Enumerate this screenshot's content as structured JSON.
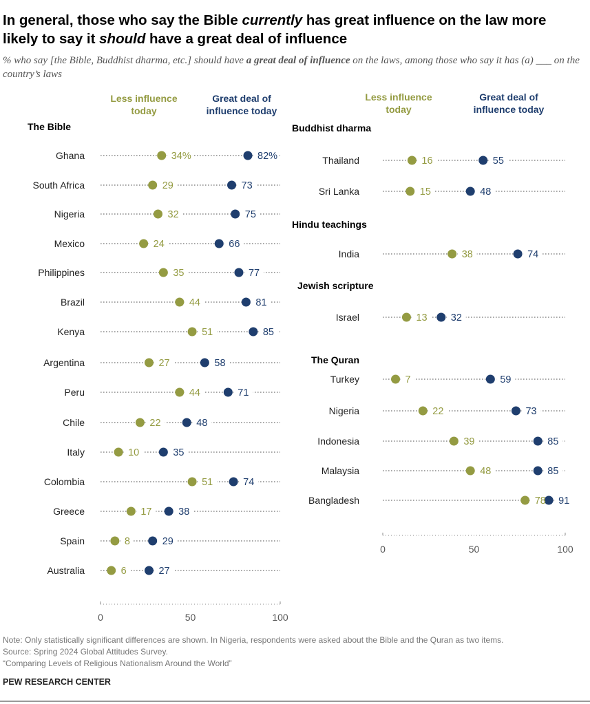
{
  "title_parts": {
    "t1": "In general, those who say the Bible ",
    "t2": "currently",
    "t3": " has great influence on the law more likely to say it ",
    "t4": "should",
    "t5": " have a great deal of influence"
  },
  "subtitle_parts": {
    "s1": "% who say [the Bible, Buddhist dharma, etc.] should have ",
    "s2": "a great deal of influence",
    "s3": " on the laws, among those who say it has (a) ___ on the country’s laws"
  },
  "legend": {
    "less": [
      "Less influence",
      "today"
    ],
    "great": [
      "Great deal of",
      "influence today"
    ]
  },
  "colors": {
    "less": "#949b42",
    "great": "#1f3e6e",
    "dots": "#8a8a8a",
    "axis": "#888888"
  },
  "chart_data": [
    {
      "type": "dot",
      "panel": "left",
      "xlim": [
        0,
        100
      ],
      "ticks": [
        0,
        50,
        100
      ],
      "series": [
        "Less influence today",
        "Great deal of influence today"
      ],
      "groups": [
        {
          "label": "The Bible",
          "rows": [
            {
              "country": "Ghana",
              "less": 34,
              "great": 82,
              "pct": true
            },
            {
              "country": "South Africa",
              "less": 29,
              "great": 73
            },
            {
              "country": "Nigeria",
              "less": 32,
              "great": 75
            },
            {
              "country": "Mexico",
              "less": 24,
              "great": 66
            },
            {
              "country": "Philippines",
              "less": 35,
              "great": 77
            },
            {
              "country": "Brazil",
              "less": 44,
              "great": 81
            },
            {
              "country": "Kenya",
              "less": 51,
              "great": 85
            },
            {
              "country": "Argentina",
              "less": 27,
              "great": 58
            },
            {
              "country": "Peru",
              "less": 44,
              "great": 71
            },
            {
              "country": "Chile",
              "less": 22,
              "great": 48
            },
            {
              "country": "Italy",
              "less": 10,
              "great": 35
            },
            {
              "country": "Colombia",
              "less": 51,
              "great": 74
            },
            {
              "country": "Greece",
              "less": 17,
              "great": 38
            },
            {
              "country": "Spain",
              "less": 8,
              "great": 29
            },
            {
              "country": "Australia",
              "less": 6,
              "great": 27
            }
          ]
        }
      ]
    },
    {
      "type": "dot",
      "panel": "right",
      "xlim": [
        0,
        100
      ],
      "ticks": [
        0,
        50,
        100
      ],
      "series": [
        "Less influence today",
        "Great deal of influence today"
      ],
      "groups": [
        {
          "label": "Buddhist dharma",
          "rows": [
            {
              "country": "Thailand",
              "less": 16,
              "great": 55
            },
            {
              "country": "Sri Lanka",
              "less": 15,
              "great": 48
            }
          ]
        },
        {
          "label": "Hindu teachings",
          "rows": [
            {
              "country": "India",
              "less": 38,
              "great": 74
            }
          ]
        },
        {
          "label": "Jewish scripture",
          "rows": [
            {
              "country": "Israel",
              "less": 13,
              "great": 32
            }
          ]
        },
        {
          "label": "The Quran",
          "rows": [
            {
              "country": "Turkey",
              "less": 7,
              "great": 59
            },
            {
              "country": "Nigeria",
              "less": 22,
              "great": 73
            },
            {
              "country": "Indonesia",
              "less": 39,
              "great": 85
            },
            {
              "country": "Malaysia",
              "less": 48,
              "great": 85
            },
            {
              "country": "Bangladesh",
              "less": 78,
              "great": 91
            }
          ]
        }
      ]
    }
  ],
  "footer": {
    "note": "Note: Only statistically significant differences are shown. In Nigeria, respondents were asked about the Bible and the Quran as two items.",
    "source": "Source: Spring 2024 Global Attitudes Survey.",
    "report": "“Comparing Levels of Religious Nationalism Around the World”",
    "brand": "PEW RESEARCH CENTER"
  }
}
